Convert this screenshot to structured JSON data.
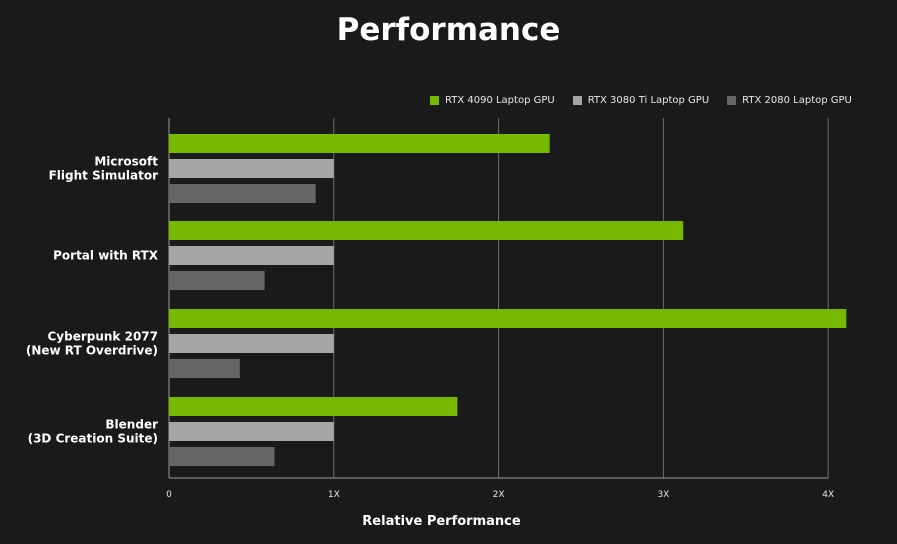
{
  "title": "Performance",
  "colors": {
    "background": "#1a1a1a",
    "gridline": "#6e6e6e",
    "text": "#ffffff"
  },
  "chart_data": {
    "type": "bar",
    "orientation": "horizontal",
    "title": "Performance",
    "xlabel": "Relative Performance",
    "ylabel": "",
    "xlim": [
      0,
      4.1
    ],
    "x_ticks": [
      "0",
      "1X",
      "2X",
      "3X",
      "4X"
    ],
    "x_tick_values": [
      0,
      1,
      2,
      3,
      4
    ],
    "grid": true,
    "legend_position": "top-right",
    "categories": [
      [
        "Microsoft",
        "Flight Simulator"
      ],
      [
        "Portal with RTX"
      ],
      [
        "Cyberpunk 2077",
        "(New RT Overdrive)"
      ],
      [
        "Blender",
        "(3D Creation Suite)"
      ]
    ],
    "series": [
      {
        "name": "RTX 4090 Laptop GPU",
        "color": "#76b900",
        "values": [
          2.31,
          3.12,
          4.11,
          1.75
        ]
      },
      {
        "name": "RTX 3080 Ti Laptop GPU",
        "color": "#a6a6a6",
        "values": [
          1.0,
          1.0,
          1.0,
          1.0
        ]
      },
      {
        "name": "RTX 2080 Laptop GPU",
        "color": "#666666",
        "values": [
          0.89,
          0.58,
          0.43,
          0.64
        ]
      }
    ]
  }
}
